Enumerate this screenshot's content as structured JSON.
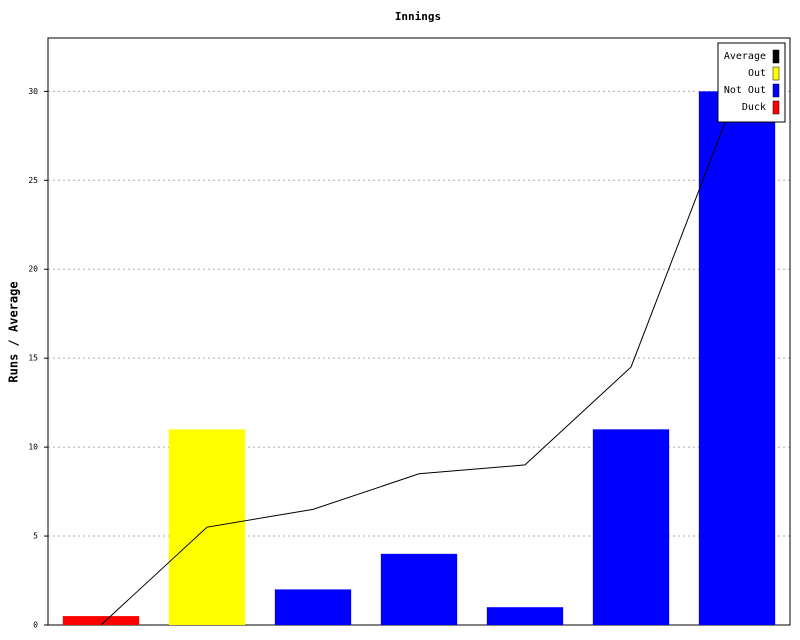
{
  "chart_data": {
    "type": "bar",
    "title": "Innings",
    "y_label": "Runs / Average",
    "categories": [
      null,
      null,
      null,
      null,
      null,
      null,
      null
    ],
    "series": [
      {
        "name": "Average",
        "color": "#000000",
        "type": "line",
        "values": [
          0,
          5.5,
          6.5,
          8.5,
          9,
          14.5,
          30
        ]
      },
      {
        "name": "Out",
        "color": "#ffff00",
        "values": [
          null,
          11,
          null,
          null,
          null,
          null,
          null
        ]
      },
      {
        "name": "Not Out",
        "color": "#0000ff",
        "values": [
          null,
          null,
          2,
          4,
          1,
          11,
          30
        ]
      },
      {
        "name": "Duck",
        "color": "#ff0000",
        "values": [
          0.5,
          null,
          null,
          null,
          null,
          null,
          null
        ]
      }
    ],
    "ylim": [
      0,
      33
    ],
    "yticks": [
      0,
      5,
      10,
      15,
      20,
      25,
      30
    ],
    "grid": true,
    "legend": "top-right"
  }
}
